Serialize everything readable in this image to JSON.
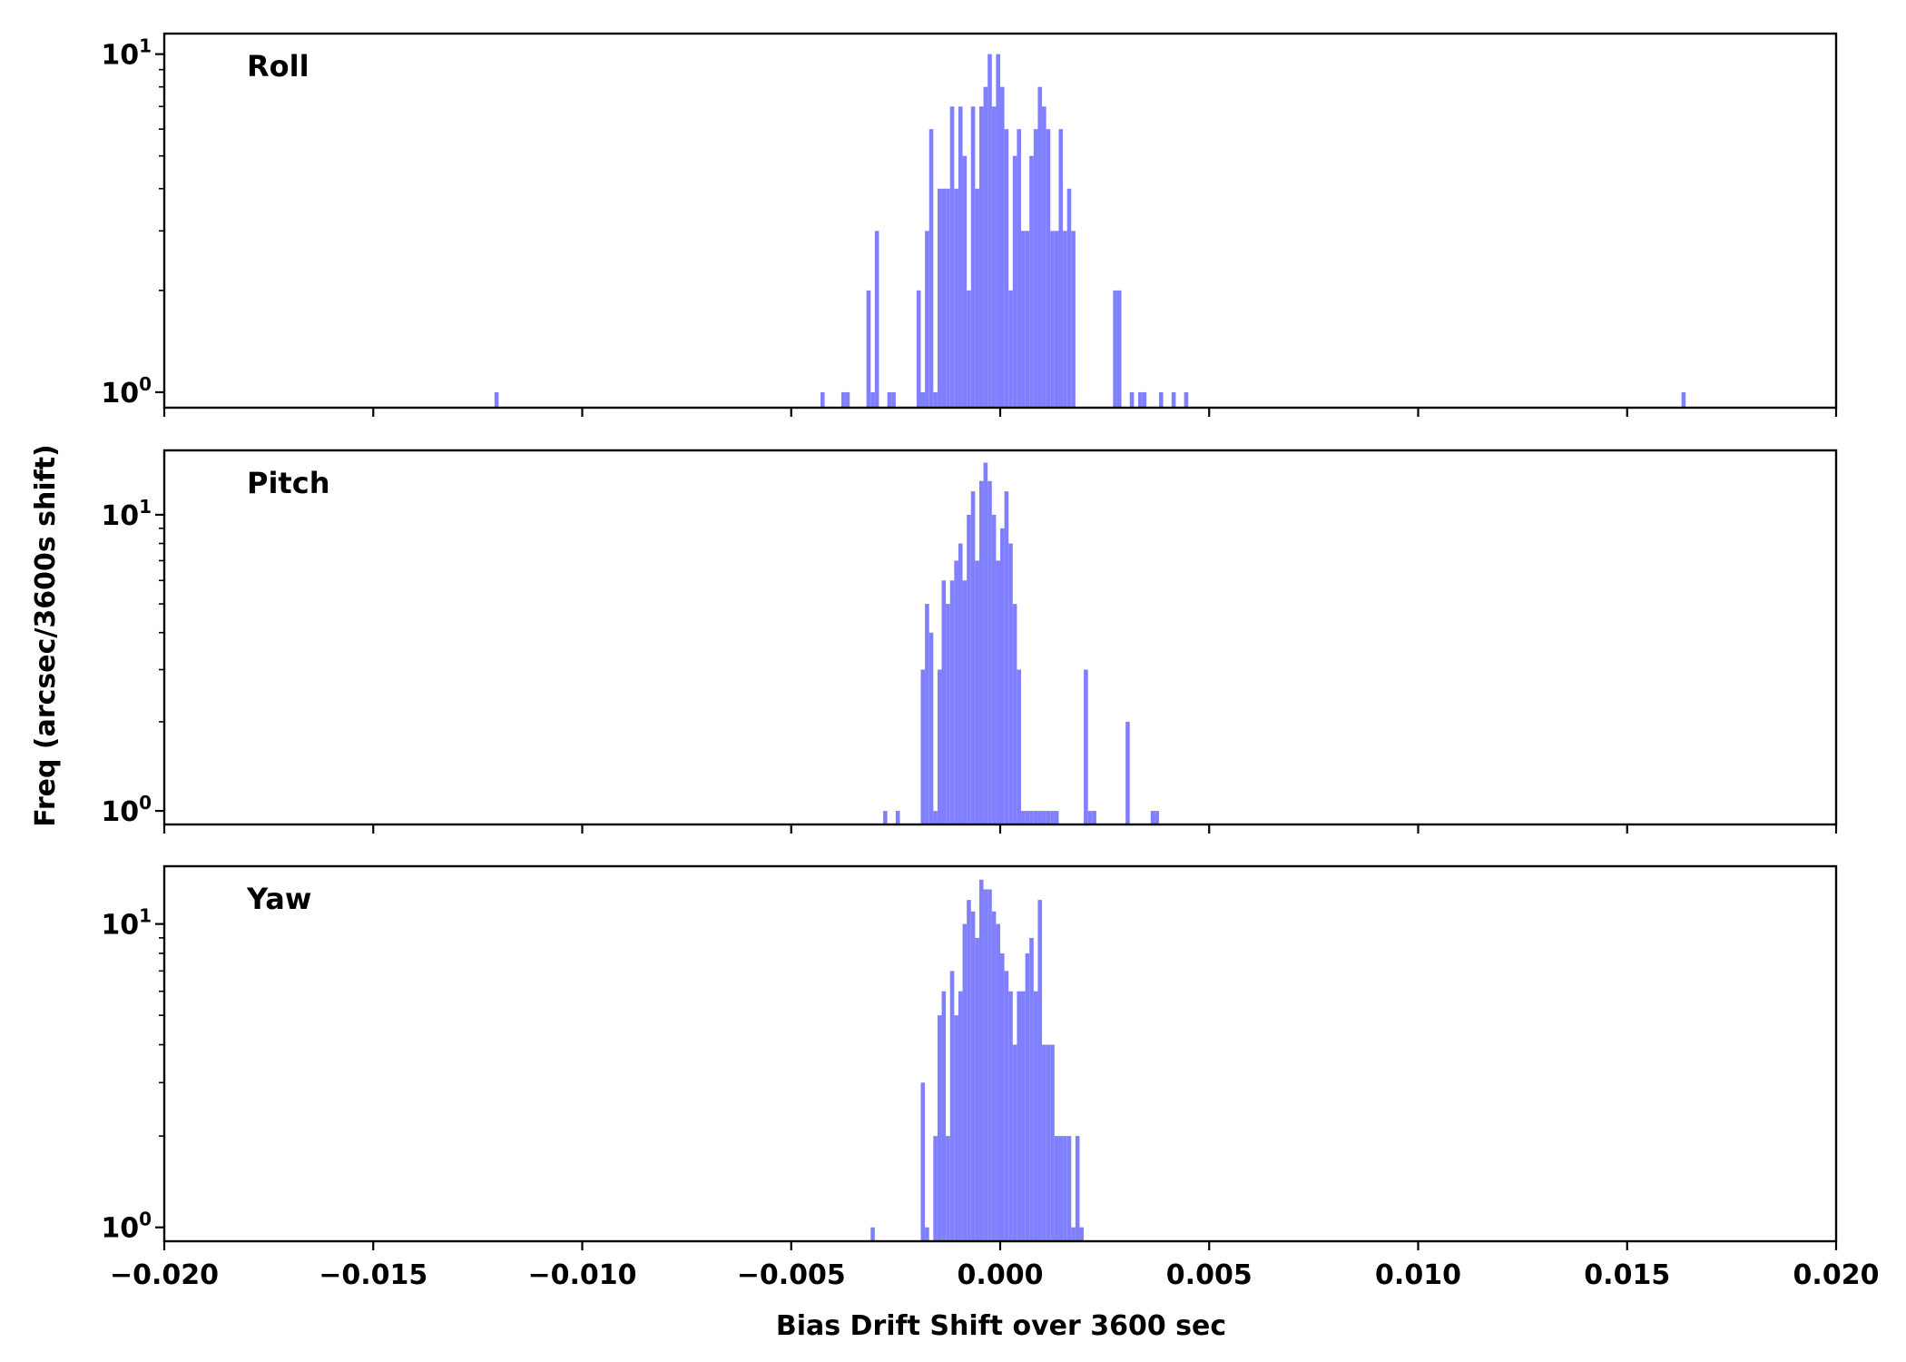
{
  "chart_data": {
    "type": "bar",
    "xlabel": "Bias Drift Shift over 3600 sec",
    "ylabel": "Freq (arcsec/3600s shift)",
    "xlim": [
      -0.02,
      0.02
    ],
    "x_ticks": [
      -0.02,
      -0.015,
      -0.01,
      -0.005,
      0.0,
      0.005,
      0.01,
      0.015,
      0.02
    ],
    "x_tick_labels": [
      "−0.020",
      "−0.015",
      "−0.010",
      "−0.005",
      "0.000",
      "0.005",
      "0.010",
      "0.015",
      "0.020"
    ],
    "y_scale": "log",
    "y_tick_base": "10",
    "y_ticks": [
      {
        "value": 1,
        "exponent": "0"
      },
      {
        "value": 10,
        "exponent": "1"
      }
    ],
    "bar_width": 0.0001,
    "bar_color": "#8080ff",
    "grid": false,
    "panels": [
      {
        "label": "Roll",
        "ylim": [
          0.9,
          11.5
        ],
        "bars": [
          [
            -0.0121,
            1
          ],
          [
            -0.0043,
            1
          ],
          [
            -0.0038,
            1
          ],
          [
            -0.0037,
            1
          ],
          [
            -0.0032,
            2
          ],
          [
            -0.0031,
            1
          ],
          [
            -0.003,
            3
          ],
          [
            -0.0027,
            1
          ],
          [
            -0.0026,
            1
          ],
          [
            -0.002,
            2
          ],
          [
            -0.0019,
            1
          ],
          [
            -0.0018,
            3
          ],
          [
            -0.0017,
            6
          ],
          [
            -0.0016,
            1
          ],
          [
            -0.0015,
            4
          ],
          [
            -0.0014,
            4
          ],
          [
            -0.0013,
            4
          ],
          [
            -0.0012,
            7
          ],
          [
            -0.0011,
            4
          ],
          [
            -0.001,
            7
          ],
          [
            -0.0009,
            5
          ],
          [
            -0.0008,
            2
          ],
          [
            -0.0007,
            7
          ],
          [
            -0.0006,
            4
          ],
          [
            -0.0005,
            7
          ],
          [
            -0.0004,
            8
          ],
          [
            -0.0003,
            10
          ],
          [
            -0.0002,
            7
          ],
          [
            -0.0001,
            10
          ],
          [
            0.0,
            8
          ],
          [
            0.0001,
            6
          ],
          [
            0.0002,
            2
          ],
          [
            0.0003,
            5
          ],
          [
            0.0004,
            6
          ],
          [
            0.0005,
            3
          ],
          [
            0.0006,
            3
          ],
          [
            0.0007,
            5
          ],
          [
            0.0008,
            6
          ],
          [
            0.0009,
            8
          ],
          [
            0.001,
            7
          ],
          [
            0.0011,
            6
          ],
          [
            0.0012,
            3
          ],
          [
            0.0013,
            3
          ],
          [
            0.0014,
            6
          ],
          [
            0.0015,
            3
          ],
          [
            0.0016,
            4
          ],
          [
            0.0017,
            3
          ],
          [
            0.0027,
            2
          ],
          [
            0.0028,
            2
          ],
          [
            0.0031,
            1
          ],
          [
            0.0033,
            1
          ],
          [
            0.0034,
            1
          ],
          [
            0.0038,
            1
          ],
          [
            0.0041,
            1
          ],
          [
            0.0044,
            1
          ],
          [
            0.0163,
            1
          ]
        ]
      },
      {
        "label": "Pitch",
        "ylim": [
          0.9,
          16.5
        ],
        "bars": [
          [
            -0.0028,
            1
          ],
          [
            -0.0025,
            1
          ],
          [
            -0.0019,
            3
          ],
          [
            -0.0018,
            5
          ],
          [
            -0.0017,
            4
          ],
          [
            -0.0016,
            1
          ],
          [
            -0.0015,
            3
          ],
          [
            -0.0014,
            6
          ],
          [
            -0.0013,
            5
          ],
          [
            -0.0012,
            6
          ],
          [
            -0.0011,
            7
          ],
          [
            -0.001,
            8
          ],
          [
            -0.0009,
            6
          ],
          [
            -0.0008,
            10
          ],
          [
            -0.0007,
            12
          ],
          [
            -0.0006,
            7
          ],
          [
            -0.0005,
            13
          ],
          [
            -0.0004,
            15
          ],
          [
            -0.0003,
            13
          ],
          [
            -0.0002,
            10
          ],
          [
            -0.0001,
            7
          ],
          [
            0.0,
            9
          ],
          [
            0.0001,
            12
          ],
          [
            0.0002,
            8
          ],
          [
            0.0003,
            5
          ],
          [
            0.0004,
            3
          ],
          [
            0.0005,
            1
          ],
          [
            0.0006,
            1
          ],
          [
            0.0007,
            1
          ],
          [
            0.0008,
            1
          ],
          [
            0.0009,
            1
          ],
          [
            0.001,
            1
          ],
          [
            0.0011,
            1
          ],
          [
            0.0012,
            1
          ],
          [
            0.0013,
            1
          ],
          [
            0.002,
            3
          ],
          [
            0.0021,
            1
          ],
          [
            0.0022,
            1
          ],
          [
            0.003,
            2
          ],
          [
            0.0036,
            1
          ],
          [
            0.0037,
            1
          ]
        ]
      },
      {
        "label": "Yaw",
        "ylim": [
          0.9,
          15.5
        ],
        "bars": [
          [
            -0.0031,
            1
          ],
          [
            -0.0019,
            3
          ],
          [
            -0.0018,
            1
          ],
          [
            -0.0016,
            2
          ],
          [
            -0.0015,
            5
          ],
          [
            -0.0014,
            6
          ],
          [
            -0.0013,
            2
          ],
          [
            -0.0012,
            7
          ],
          [
            -0.0011,
            5
          ],
          [
            -0.001,
            6
          ],
          [
            -0.0009,
            10
          ],
          [
            -0.0008,
            12
          ],
          [
            -0.0007,
            11
          ],
          [
            -0.0006,
            9
          ],
          [
            -0.0005,
            14
          ],
          [
            -0.0004,
            13
          ],
          [
            -0.0003,
            13
          ],
          [
            -0.0002,
            11
          ],
          [
            -0.0001,
            10
          ],
          [
            0.0,
            8
          ],
          [
            0.0001,
            7
          ],
          [
            0.0002,
            6
          ],
          [
            0.0003,
            4
          ],
          [
            0.0004,
            6
          ],
          [
            0.0005,
            6
          ],
          [
            0.0006,
            8
          ],
          [
            0.0007,
            9
          ],
          [
            0.0008,
            6
          ],
          [
            0.0009,
            12
          ],
          [
            0.001,
            4
          ],
          [
            0.0011,
            4
          ],
          [
            0.0012,
            4
          ],
          [
            0.0013,
            2
          ],
          [
            0.0014,
            2
          ],
          [
            0.0015,
            2
          ],
          [
            0.0016,
            2
          ],
          [
            0.0017,
            1
          ],
          [
            0.0018,
            2
          ],
          [
            0.0019,
            1
          ]
        ]
      }
    ]
  }
}
